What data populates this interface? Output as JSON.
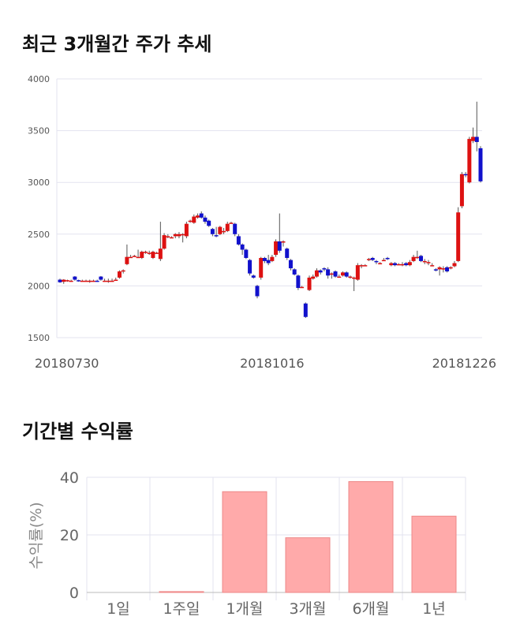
{
  "titles": {
    "price": "최근 3개월간 주가 추세",
    "returns": "기간별 수익률"
  },
  "colors": {
    "up": "#dd1111",
    "down": "#1111cc",
    "wick": "#555555",
    "grid": "#e3e3ef",
    "bar_fill": "#ffaaaa",
    "bar_stroke": "#ee8888"
  },
  "chart_data": [
    {
      "type": "candlestick",
      "title": "최근 3개월간 주가 추세",
      "ylim": [
        1500,
        4000
      ],
      "yticks": [
        1500,
        2000,
        2500,
        3000,
        3500,
        4000
      ],
      "x_tick_labels": [
        "20180730",
        "20181016",
        "20181226"
      ],
      "grid": true,
      "candles": [
        [
          2060,
          2035,
          2070,
          2030
        ],
        [
          2040,
          2060,
          2065,
          2020
        ],
        [
          2055,
          2055,
          2060,
          2040
        ],
        [
          2050,
          2050,
          2060,
          2045
        ],
        [
          2090,
          2060,
          2095,
          2050
        ],
        [
          2055,
          2050,
          2060,
          2040
        ],
        [
          2050,
          2050,
          2060,
          2045
        ],
        [
          2050,
          2050,
          2060,
          2045
        ],
        [
          2050,
          2050,
          2060,
          2030
        ],
        [
          2050,
          2050,
          2060,
          2040
        ],
        [
          2050,
          2045,
          2060,
          2040
        ],
        [
          2090,
          2060,
          2095,
          2050
        ],
        [
          2050,
          2050,
          2070,
          2040
        ],
        [
          2050,
          2050,
          2070,
          2030
        ],
        [
          2050,
          2050,
          2070,
          2040
        ],
        [
          2060,
          2060,
          2080,
          2050
        ],
        [
          2080,
          2140,
          2150,
          2070
        ],
        [
          2140,
          2150,
          2160,
          2120
        ],
        [
          2210,
          2280,
          2400,
          2200
        ],
        [
          2280,
          2280,
          2300,
          2270
        ],
        [
          2290,
          2290,
          2300,
          2280
        ],
        [
          2280,
          2280,
          2350,
          2270
        ],
        [
          2270,
          2330,
          2340,
          2260
        ],
        [
          2320,
          2330,
          2340,
          2310
        ],
        [
          2320,
          2320,
          2340,
          2300
        ],
        [
          2270,
          2330,
          2340,
          2260
        ],
        [
          2320,
          2320,
          2330,
          2310
        ],
        [
          2260,
          2360,
          2620,
          2240
        ],
        [
          2360,
          2490,
          2510,
          2350
        ],
        [
          2470,
          2480,
          2500,
          2460
        ],
        [
          2470,
          2470,
          2480,
          2460
        ],
        [
          2480,
          2500,
          2510,
          2460
        ],
        [
          2480,
          2500,
          2520,
          2460
        ],
        [
          2500,
          2500,
          2510,
          2420
        ],
        [
          2480,
          2600,
          2620,
          2460
        ],
        [
          2620,
          2630,
          2640,
          2610
        ],
        [
          2610,
          2670,
          2690,
          2600
        ],
        [
          2660,
          2680,
          2700,
          2650
        ],
        [
          2700,
          2660,
          2720,
          2650
        ],
        [
          2660,
          2620,
          2680,
          2600
        ],
        [
          2630,
          2580,
          2640,
          2570
        ],
        [
          2550,
          2500,
          2560,
          2480
        ],
        [
          2490,
          2480,
          2570,
          2470
        ],
        [
          2500,
          2570,
          2580,
          2490
        ],
        [
          2530,
          2530,
          2560,
          2500
        ],
        [
          2530,
          2600,
          2620,
          2520
        ],
        [
          2610,
          2610,
          2620,
          2600
        ],
        [
          2600,
          2500,
          2610,
          2480
        ],
        [
          2480,
          2400,
          2500,
          2390
        ],
        [
          2400,
          2350,
          2410,
          2300
        ],
        [
          2350,
          2270,
          2360,
          2260
        ],
        [
          2250,
          2120,
          2260,
          2100
        ],
        [
          2100,
          2080,
          2110,
          2070
        ],
        [
          2000,
          1900,
          2010,
          1880
        ],
        [
          2080,
          2270,
          2280,
          2060
        ],
        [
          2270,
          2240,
          2280,
          2220
        ],
        [
          2250,
          2220,
          2300,
          2200
        ],
        [
          2240,
          2280,
          2300,
          2230
        ],
        [
          2300,
          2430,
          2450,
          2280
        ],
        [
          2430,
          2340,
          2700,
          2320
        ],
        [
          2420,
          2430,
          2440,
          2380
        ],
        [
          2360,
          2270,
          2370,
          2250
        ],
        [
          2250,
          2170,
          2260,
          2150
        ],
        [
          2160,
          2110,
          2170,
          2100
        ],
        [
          2100,
          1980,
          2110,
          1960
        ],
        [
          1990,
          1990,
          2000,
          1980
        ],
        [
          1830,
          1700,
          1840,
          1690
        ],
        [
          1960,
          2080,
          2100,
          1950
        ],
        [
          2070,
          2090,
          2110,
          2060
        ],
        [
          2090,
          2150,
          2170,
          2080
        ],
        [
          2150,
          2130,
          2160,
          2110
        ],
        [
          2170,
          2160,
          2180,
          2140
        ],
        [
          2160,
          2100,
          2180,
          2070
        ],
        [
          2120,
          2120,
          2130,
          2070
        ],
        [
          2140,
          2090,
          2150,
          2080
        ],
        [
          2090,
          2090,
          2110,
          2080
        ],
        [
          2100,
          2130,
          2140,
          2090
        ],
        [
          2130,
          2090,
          2140,
          2080
        ],
        [
          2080,
          2090,
          2100,
          2070
        ],
        [
          2080,
          2080,
          2090,
          1950
        ],
        [
          2060,
          2200,
          2220,
          2050
        ],
        [
          2190,
          2200,
          2210,
          2170
        ],
        [
          2200,
          2200,
          2210,
          2190
        ],
        [
          2260,
          2260,
          2270,
          2240
        ],
        [
          2270,
          2250,
          2280,
          2240
        ],
        [
          2240,
          2230,
          2250,
          2210
        ],
        [
          2220,
          2220,
          2230,
          2210
        ],
        [
          2250,
          2250,
          2270,
          2240
        ],
        [
          2270,
          2260,
          2280,
          2250
        ],
        [
          2200,
          2220,
          2230,
          2190
        ],
        [
          2220,
          2200,
          2230,
          2190
        ],
        [
          2210,
          2210,
          2220,
          2200
        ],
        [
          2210,
          2210,
          2230,
          2190
        ],
        [
          2220,
          2200,
          2230,
          2190
        ],
        [
          2200,
          2230,
          2250,
          2190
        ],
        [
          2240,
          2280,
          2300,
          2230
        ],
        [
          2280,
          2280,
          2340,
          2260
        ],
        [
          2290,
          2240,
          2300,
          2230
        ],
        [
          2240,
          2240,
          2260,
          2210
        ],
        [
          2230,
          2230,
          2250,
          2200
        ],
        [
          2200,
          2200,
          2220,
          2190
        ],
        [
          2160,
          2150,
          2170,
          2140
        ],
        [
          2160,
          2180,
          2190,
          2100
        ],
        [
          2170,
          2170,
          2190,
          2130
        ],
        [
          2180,
          2140,
          2190,
          2130
        ],
        [
          2170,
          2180,
          2190,
          2160
        ],
        [
          2190,
          2220,
          2240,
          2180
        ],
        [
          2240,
          2710,
          2760,
          2230
        ],
        [
          2770,
          3080,
          3100,
          2750
        ],
        [
          3080,
          3070,
          3100,
          3050
        ],
        [
          3000,
          3420,
          3440,
          2990
        ],
        [
          3400,
          3440,
          3530,
          3380
        ],
        [
          3440,
          3390,
          3780,
          3300
        ],
        [
          3330,
          3010,
          3350,
          3000
        ]
      ]
    },
    {
      "type": "bar",
      "title": "기간별 수익률",
      "ylabel": "수익률(%)",
      "ylim": [
        0,
        40
      ],
      "yticks": [
        0,
        20,
        40
      ],
      "categories": [
        "1일",
        "1주일",
        "1개월",
        "3개월",
        "6개월",
        "1년"
      ],
      "values": [
        0,
        0.3,
        35,
        19,
        38.5,
        26.5
      ],
      "grid": true
    }
  ]
}
